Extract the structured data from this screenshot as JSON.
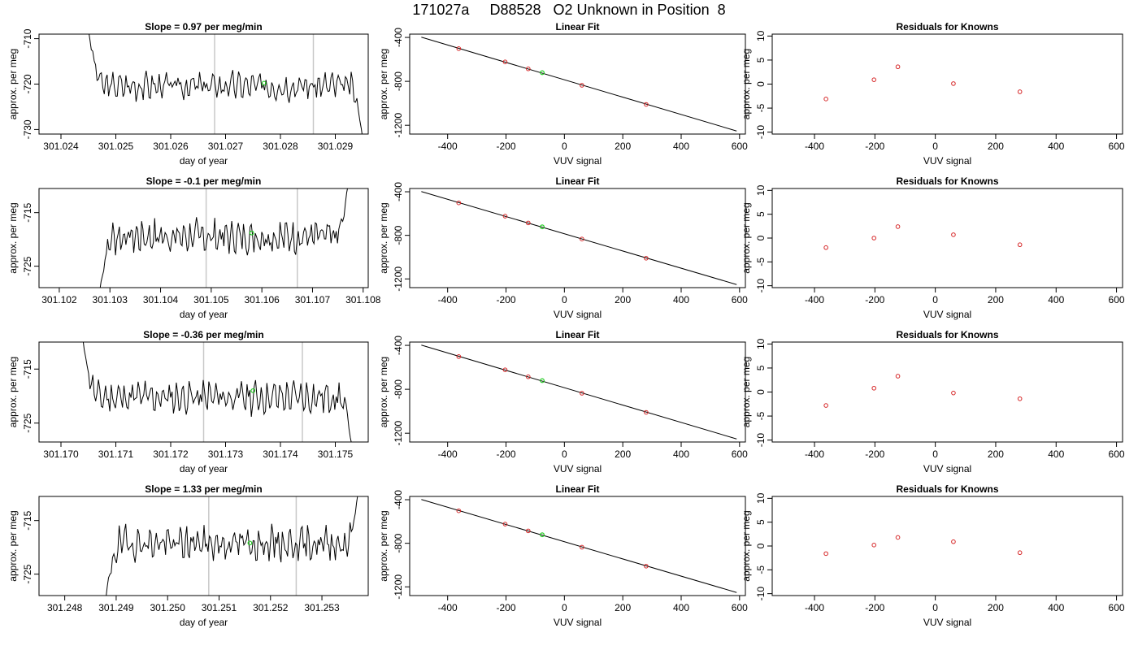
{
  "title": "171027a     D88528   O2 Unknown in Position  8",
  "colors": {
    "trace": "#000000",
    "known_point": "#d62728",
    "unknown_point": "#22cc22",
    "marker_line": "#c8c8c8"
  },
  "chart_data": [
    {
      "id": "r1-trace",
      "type": "line",
      "title": "Slope =  0.97  per meg/min",
      "xlabel": "day of year",
      "ylabel": "approx. per meg",
      "xlim": [
        301.0236,
        301.0296
      ],
      "ylim": [
        -731,
        -709
      ],
      "xticks": [
        "301.024",
        "301.025",
        "301.026",
        "301.027",
        "301.028",
        "301.029"
      ],
      "xtick_values": [
        301.024,
        301.025,
        301.026,
        301.027,
        301.028,
        301.029
      ],
      "yticks": [
        "-730",
        "-720",
        "-710"
      ],
      "ytick_values": [
        -730,
        -720,
        -710
      ],
      "vlines": [
        301.0268,
        301.0286
      ],
      "series": [
        {
          "start": 301.0245,
          "end": 301.0295,
          "baseline": -720.4,
          "amplitude": 1.8,
          "start_value": -708,
          "end_value": -732,
          "seed": 3
        }
      ],
      "unknown_point": {
        "x": 301.0277,
        "y": -719.8
      }
    },
    {
      "id": "r1-fit",
      "type": "scatter",
      "title": "Linear Fit",
      "xlabel": "VUV signal",
      "ylabel": "approx. per meg",
      "xlim": [
        -530,
        620
      ],
      "ylim": [
        -1280,
        -370
      ],
      "xticks": [
        "-400",
        "-200",
        "0",
        "200",
        "400",
        "600"
      ],
      "xtick_values": [
        -400,
        -200,
        0,
        200,
        400,
        600
      ],
      "yticks": [
        "-400",
        "-800",
        "-1200"
      ],
      "ytick_values": [
        -400,
        -800,
        -1200
      ],
      "fit_line": {
        "x1": -490,
        "y1": -398,
        "x2": 590,
        "y2": -1252
      },
      "known_points": [
        {
          "x": -362,
          "y": -502
        },
        {
          "x": -203,
          "y": -623
        },
        {
          "x": -124,
          "y": -686
        },
        {
          "x": 60,
          "y": -836
        },
        {
          "x": 280,
          "y": -1010
        }
      ],
      "unknown_point": {
        "x": -76,
        "y": -721
      }
    },
    {
      "id": "r1-resid",
      "type": "scatter",
      "title": "Residuals for Knowns",
      "xlabel": "VUV signal",
      "ylabel": "approx. per meg",
      "xlim": [
        -540,
        620
      ],
      "ylim": [
        -10.4,
        10.4
      ],
      "xticks": [
        "-400",
        "-200",
        "0",
        "200",
        "400",
        "600"
      ],
      "xtick_values": [
        -400,
        -200,
        0,
        200,
        400,
        600
      ],
      "yticks": [
        "-10",
        "-5",
        "0",
        "5",
        "10"
      ],
      "ytick_values": [
        -10,
        -5,
        0,
        5,
        10
      ],
      "known_points": [
        {
          "x": -362,
          "y": -3.1
        },
        {
          "x": -203,
          "y": 0.9
        },
        {
          "x": -124,
          "y": 3.6
        },
        {
          "x": 60,
          "y": 0.1
        },
        {
          "x": 280,
          "y": -1.6
        }
      ]
    },
    {
      "id": "r2-trace",
      "type": "line",
      "title": "Slope =  -0.1  per meg/min",
      "xlabel": "day of year",
      "ylabel": "approx. per meg",
      "xlim": [
        301.1016,
        301.1081
      ],
      "ylim": [
        -729,
        -710.5
      ],
      "xticks": [
        "301.102",
        "301.103",
        "301.104",
        "301.105",
        "301.106",
        "301.107",
        "301.108"
      ],
      "xtick_values": [
        301.102,
        301.103,
        301.104,
        301.105,
        301.106,
        301.107,
        301.108
      ],
      "yticks": [
        "-725",
        "-715"
      ],
      "ytick_values": [
        -725,
        -715
      ],
      "vlines": [
        301.1049,
        301.1067
      ],
      "series": [
        {
          "start": 301.1028,
          "end": 301.1077,
          "baseline": -719.5,
          "amplitude": 1.8,
          "start_value": -729.5,
          "end_value": -710,
          "seed": 7
        }
      ],
      "unknown_point": {
        "x": 301.1058,
        "y": -718.8
      }
    },
    {
      "id": "r2-fit",
      "type": "scatter",
      "title": "Linear Fit",
      "xlabel": "VUV signal",
      "ylabel": "approx. per meg",
      "xlim": [
        -530,
        620
      ],
      "ylim": [
        -1280,
        -370
      ],
      "xticks": [
        "-400",
        "-200",
        "0",
        "200",
        "400",
        "600"
      ],
      "xtick_values": [
        -400,
        -200,
        0,
        200,
        400,
        600
      ],
      "yticks": [
        "-400",
        "-800",
        "-1200"
      ],
      "ytick_values": [
        -400,
        -800,
        -1200
      ],
      "fit_line": {
        "x1": -490,
        "y1": -398,
        "x2": 590,
        "y2": -1252
      },
      "known_points": [
        {
          "x": -362,
          "y": -502
        },
        {
          "x": -203,
          "y": -624
        },
        {
          "x": -124,
          "y": -686
        },
        {
          "x": 60,
          "y": -834
        },
        {
          "x": 280,
          "y": -1010
        }
      ],
      "unknown_point": {
        "x": -76,
        "y": -722
      }
    },
    {
      "id": "r2-resid",
      "type": "scatter",
      "title": "Residuals for Knowns",
      "xlabel": "VUV signal",
      "ylabel": "approx. per meg",
      "xlim": [
        -540,
        620
      ],
      "ylim": [
        -10.4,
        10.4
      ],
      "xticks": [
        "-400",
        "-200",
        "0",
        "200",
        "400",
        "600"
      ],
      "xtick_values": [
        -400,
        -200,
        0,
        200,
        400,
        600
      ],
      "yticks": [
        "-10",
        "-5",
        "0",
        "5",
        "10"
      ],
      "ytick_values": [
        -10,
        -5,
        0,
        5,
        10
      ],
      "known_points": [
        {
          "x": -362,
          "y": -2.0
        },
        {
          "x": -203,
          "y": 0.0
        },
        {
          "x": -124,
          "y": 2.4
        },
        {
          "x": 60,
          "y": 0.7
        },
        {
          "x": 280,
          "y": -1.4
        }
      ]
    },
    {
      "id": "r3-trace",
      "type": "line",
      "title": "Slope =  -0.36  per meg/min",
      "xlabel": "day of year",
      "ylabel": "approx. per meg",
      "xlim": [
        301.1696,
        301.1756
      ],
      "ylim": [
        -728.5,
        -710
      ],
      "xticks": [
        "301.170",
        "301.171",
        "301.172",
        "301.173",
        "301.174",
        "301.175"
      ],
      "xtick_values": [
        301.17,
        301.171,
        301.172,
        301.173,
        301.174,
        301.175
      ],
      "yticks": [
        "-725",
        "-715"
      ],
      "ytick_values": [
        -725,
        -715
      ],
      "vlines": [
        301.1726,
        301.1744
      ],
      "series": [
        {
          "start": 301.1704,
          "end": 301.1753,
          "baseline": -720.2,
          "amplitude": 1.8,
          "start_value": -709.5,
          "end_value": -729,
          "seed": 11
        }
      ],
      "unknown_point": {
        "x": 301.1735,
        "y": -719.0
      }
    },
    {
      "id": "r3-fit",
      "type": "scatter",
      "title": "Linear Fit",
      "xlabel": "VUV signal",
      "ylabel": "approx. per meg",
      "xlim": [
        -530,
        620
      ],
      "ylim": [
        -1280,
        -370
      ],
      "xticks": [
        "-400",
        "-200",
        "0",
        "200",
        "400",
        "600"
      ],
      "xtick_values": [
        -400,
        -200,
        0,
        200,
        400,
        600
      ],
      "yticks": [
        "-400",
        "-800",
        "-1200"
      ],
      "ytick_values": [
        -400,
        -800,
        -1200
      ],
      "fit_line": {
        "x1": -490,
        "y1": -398,
        "x2": 590,
        "y2": -1252
      },
      "known_points": [
        {
          "x": -362,
          "y": -502
        },
        {
          "x": -203,
          "y": -623
        },
        {
          "x": -124,
          "y": -686
        },
        {
          "x": 60,
          "y": -836
        },
        {
          "x": 280,
          "y": -1010
        }
      ],
      "unknown_point": {
        "x": -76,
        "y": -721
      }
    },
    {
      "id": "r3-resid",
      "type": "scatter",
      "title": "Residuals for Knowns",
      "xlabel": "VUV signal",
      "ylabel": "approx. per meg",
      "xlim": [
        -540,
        620
      ],
      "ylim": [
        -10.4,
        10.4
      ],
      "xticks": [
        "-400",
        "-200",
        "0",
        "200",
        "400",
        "600"
      ],
      "xtick_values": [
        -400,
        -200,
        0,
        200,
        400,
        600
      ],
      "yticks": [
        "-10",
        "-5",
        "0",
        "5",
        "10"
      ],
      "ytick_values": [
        -10,
        -5,
        0,
        5,
        10
      ],
      "known_points": [
        {
          "x": -362,
          "y": -2.8
        },
        {
          "x": -203,
          "y": 0.8
        },
        {
          "x": -124,
          "y": 3.3
        },
        {
          "x": 60,
          "y": -0.2
        },
        {
          "x": 280,
          "y": -1.4
        }
      ]
    },
    {
      "id": "r4-trace",
      "type": "line",
      "title": "Slope =  1.33  per meg/min",
      "xlabel": "day of year",
      "ylabel": "approx. per meg",
      "xlim": [
        301.2475,
        301.2539
      ],
      "ylim": [
        -729,
        -710.5
      ],
      "xticks": [
        "301.248",
        "301.249",
        "301.250",
        "301.251",
        "301.252",
        "301.253"
      ],
      "xtick_values": [
        301.248,
        301.249,
        301.25,
        301.251,
        301.252,
        301.253
      ],
      "yticks": [
        "-725",
        "-715"
      ],
      "ytick_values": [
        -725,
        -715
      ],
      "vlines": [
        301.2508,
        301.2525
      ],
      "series": [
        {
          "start": 301.2488,
          "end": 301.2537,
          "baseline": -719.3,
          "amplitude": 1.8,
          "start_value": -729.5,
          "end_value": -710,
          "seed": 19
        }
      ],
      "unknown_point": {
        "x": 301.2516,
        "y": -719.2
      }
    },
    {
      "id": "r4-fit",
      "type": "scatter",
      "title": "Linear Fit",
      "xlabel": "VUV signal",
      "ylabel": "approx. per meg",
      "xlim": [
        -530,
        620
      ],
      "ylim": [
        -1280,
        -370
      ],
      "xticks": [
        "-400",
        "-200",
        "0",
        "200",
        "400",
        "600"
      ],
      "xtick_values": [
        -400,
        -200,
        0,
        200,
        400,
        600
      ],
      "yticks": [
        "-400",
        "-800",
        "-1200"
      ],
      "ytick_values": [
        -400,
        -800,
        -1200
      ],
      "fit_line": {
        "x1": -490,
        "y1": -398,
        "x2": 590,
        "y2": -1252
      },
      "known_points": [
        {
          "x": -362,
          "y": -502
        },
        {
          "x": -203,
          "y": -624
        },
        {
          "x": -124,
          "y": -686
        },
        {
          "x": 60,
          "y": -836
        },
        {
          "x": 280,
          "y": -1010
        }
      ],
      "unknown_point": {
        "x": -76,
        "y": -722
      }
    },
    {
      "id": "r4-resid",
      "type": "scatter",
      "title": "Residuals for Knowns",
      "xlabel": "VUV signal",
      "ylabel": "approx. per meg",
      "xlim": [
        -540,
        620
      ],
      "ylim": [
        -10.4,
        10.4
      ],
      "xticks": [
        "-400",
        "-200",
        "0",
        "200",
        "400",
        "600"
      ],
      "xtick_values": [
        -400,
        -200,
        0,
        200,
        400,
        600
      ],
      "yticks": [
        "-10",
        "-5",
        "0",
        "5",
        "10"
      ],
      "ytick_values": [
        -10,
        -5,
        0,
        5,
        10
      ],
      "known_points": [
        {
          "x": -362,
          "y": -1.6
        },
        {
          "x": -203,
          "y": 0.2
        },
        {
          "x": -124,
          "y": 1.8
        },
        {
          "x": 60,
          "y": 0.9
        },
        {
          "x": 280,
          "y": -1.4
        }
      ]
    }
  ]
}
